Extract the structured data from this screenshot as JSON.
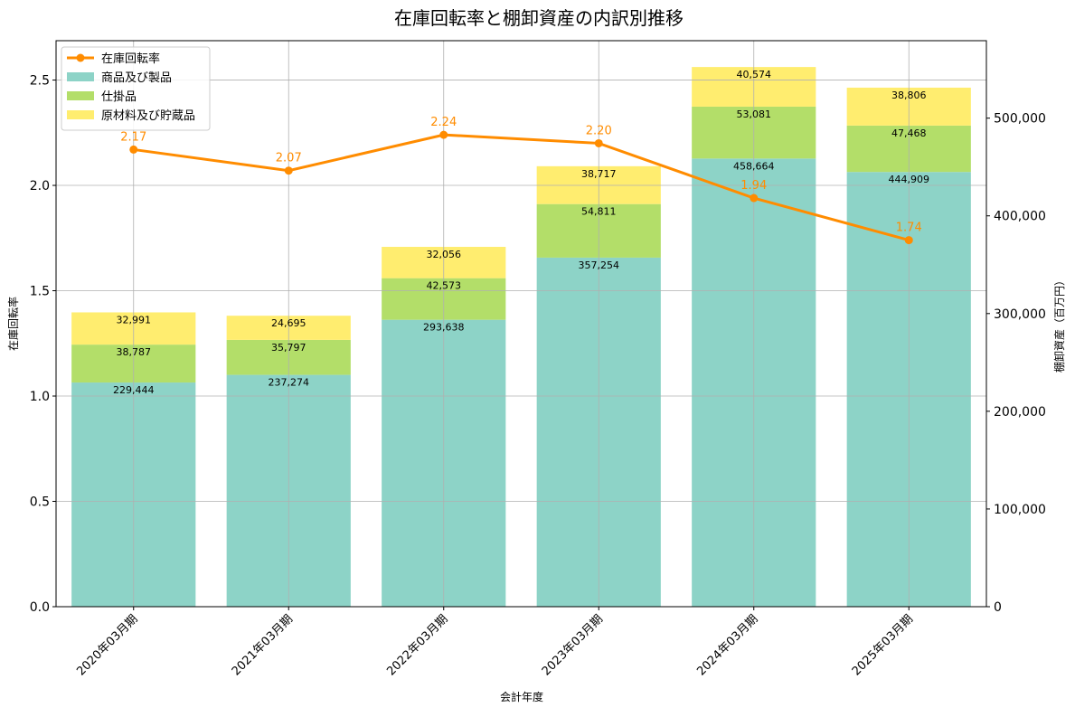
{
  "chart_data": {
    "type": "bar+line",
    "title": "在庫回転率と棚卸資産の内訳別推移",
    "xlabel": "会計年度",
    "ylabel_left": "在庫回転率",
    "ylabel_right": "棚卸資産（百万円）",
    "categories": [
      "2020年03月期",
      "2021年03月期",
      "2022年03月期",
      "2023年03月期",
      "2024年03月期",
      "2025年03月期"
    ],
    "bar_series": [
      {
        "name": "商品及び製品",
        "color": "#8dd3c7",
        "values": [
          229444,
          237274,
          293638,
          357254,
          458664,
          444909
        ],
        "labels": [
          "229,444",
          "237,274",
          "293,638",
          "357,254",
          "458,664",
          "444,909"
        ]
      },
      {
        "name": "仕掛品",
        "color": "#b3de69",
        "values": [
          38787,
          35797,
          42573,
          54811,
          53081,
          47468
        ],
        "labels": [
          "38,787",
          "35,797",
          "42,573",
          "54,811",
          "53,081",
          "47,468"
        ]
      },
      {
        "name": "原材料及び貯蔵品",
        "color": "#ffed6f",
        "values": [
          32991,
          24695,
          32056,
          38717,
          40574,
          38806
        ],
        "labels": [
          "32,991",
          "24,695",
          "32,056",
          "38,717",
          "40,574",
          "38,806"
        ]
      }
    ],
    "line_series": {
      "name": "在庫回転率",
      "color": "#ff8c00",
      "values": [
        2.17,
        2.07,
        2.24,
        2.2,
        1.94,
        1.74
      ],
      "labels": [
        "2.17",
        "2.07",
        "2.24",
        "2.20",
        "1.94",
        "1.74"
      ]
    },
    "y_left": {
      "min": 0,
      "max": 2.6869,
      "ticks": [
        0,
        0.5,
        1.0,
        1.5,
        2.0,
        2.5
      ],
      "tick_labels": [
        "0.0",
        "0.5",
        "1.0",
        "1.5",
        "2.0",
        "2.5"
      ]
    },
    "y_right": {
      "min": 0,
      "max": 579260,
      "ticks": [
        0,
        100000,
        200000,
        300000,
        400000,
        500000
      ],
      "tick_labels": [
        "0",
        "100,000",
        "200,000",
        "300,000",
        "400,000",
        "500,000"
      ]
    },
    "grid": true,
    "legend_position": "top-left"
  }
}
